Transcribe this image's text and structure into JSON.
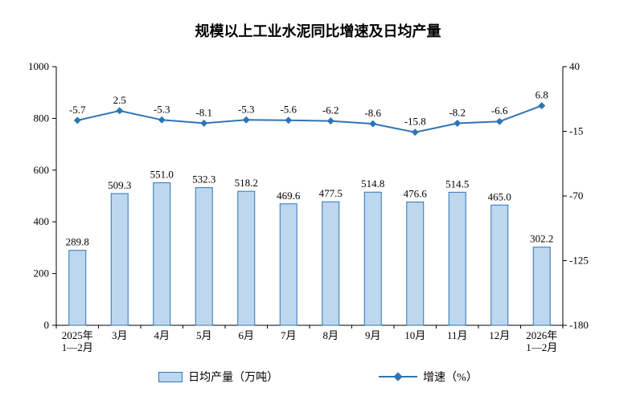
{
  "chart_data": {
    "type": "bar+line",
    "title": "规模以上工业水泥同比增速及日均产量",
    "categories": [
      [
        "2025年",
        "1—2月"
      ],
      [
        "3月"
      ],
      [
        "4月"
      ],
      [
        "5月"
      ],
      [
        "6月"
      ],
      [
        "7月"
      ],
      [
        "8月"
      ],
      [
        "9月"
      ],
      [
        "10月"
      ],
      [
        "11月"
      ],
      [
        "12月"
      ],
      [
        "2026年",
        "1—2月"
      ]
    ],
    "bar_series": {
      "name": "日均产量（万吨）",
      "values": [
        289.8,
        509.3,
        551.0,
        532.3,
        518.2,
        469.6,
        477.5,
        514.8,
        476.6,
        514.5,
        465.0,
        302.2
      ]
    },
    "line_series": {
      "name": "增速（%）",
      "values": [
        -5.7,
        2.5,
        -5.3,
        -8.1,
        -5.3,
        -5.6,
        -6.2,
        -8.6,
        -15.8,
        -8.2,
        -6.6,
        6.8
      ]
    },
    "left_axis": {
      "min": 0,
      "max": 1000,
      "ticks": [
        0,
        200,
        400,
        600,
        800,
        1000
      ]
    },
    "right_axis": {
      "min": -180,
      "max": 40,
      "ticks": [
        40,
        -15,
        -70,
        -125,
        -180
      ]
    },
    "grid": false,
    "legend_position": "bottom"
  },
  "colors": {
    "bar_fill": "#BDD7EE",
    "bar_border": "#2E75B6",
    "line": "#2E75B6",
    "axis": "#000000",
    "text": "#000000",
    "background": "#FFFFFF"
  }
}
